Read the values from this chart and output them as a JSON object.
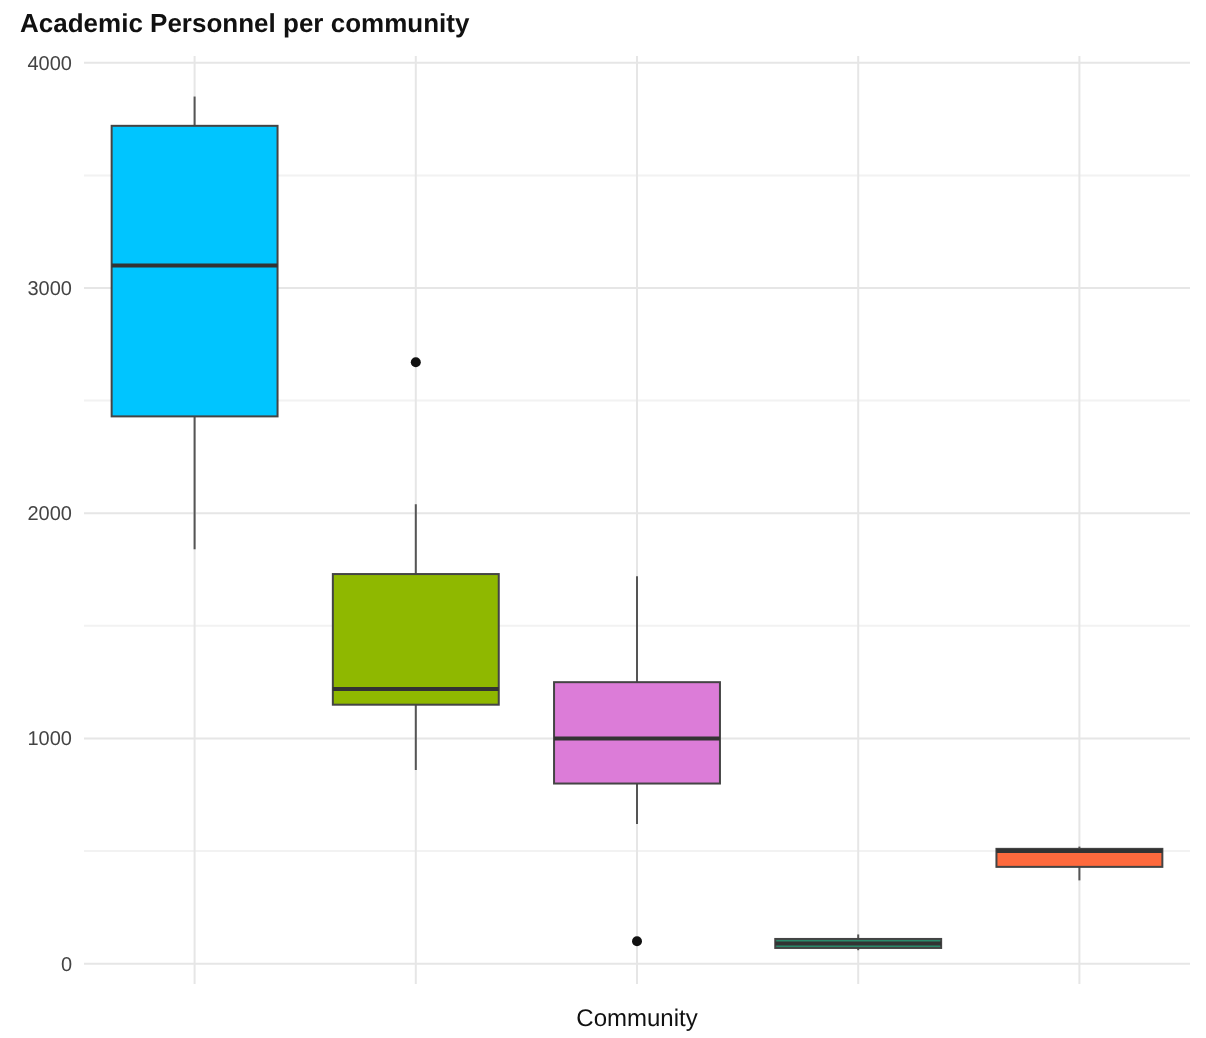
{
  "chart_data": {
    "type": "box",
    "title": "Academic Personnel per community",
    "xlabel": "Community",
    "categories": [
      null,
      null,
      null,
      null,
      null
    ],
    "colors": [
      "#00c5ff",
      "#8fb800",
      "#dc7cd8",
      "#2a8a6c",
      "#ff6a3d"
    ],
    "boxes": [
      {
        "low": 1840,
        "q1": 2430,
        "median": 3100,
        "q3": 3720,
        "high": 3850
      },
      {
        "low": 860,
        "q1": 1150,
        "median": 1220,
        "q3": 1730,
        "high": 2040,
        "outliers": [
          2670
        ]
      },
      {
        "low": 620,
        "q1": 800,
        "median": 1000,
        "q3": 1250,
        "high": 1720,
        "outliers": [
          100
        ]
      },
      {
        "low": 60,
        "q1": 70,
        "median": 90,
        "q3": 110,
        "high": 130
      },
      {
        "low": 370,
        "q1": 430,
        "median": 500,
        "q3": 510,
        "high": 520
      }
    ],
    "ylim": [
      -90,
      4030
    ],
    "yticks": [
      0,
      {
        "value": 500,
        "label": null
      },
      1000,
      {
        "value": 1500,
        "label": null
      },
      2000,
      {
        "value": 2500,
        "label": null
      },
      3000,
      {
        "value": 3500,
        "label": null
      },
      4000
    ],
    "grid": true
  }
}
